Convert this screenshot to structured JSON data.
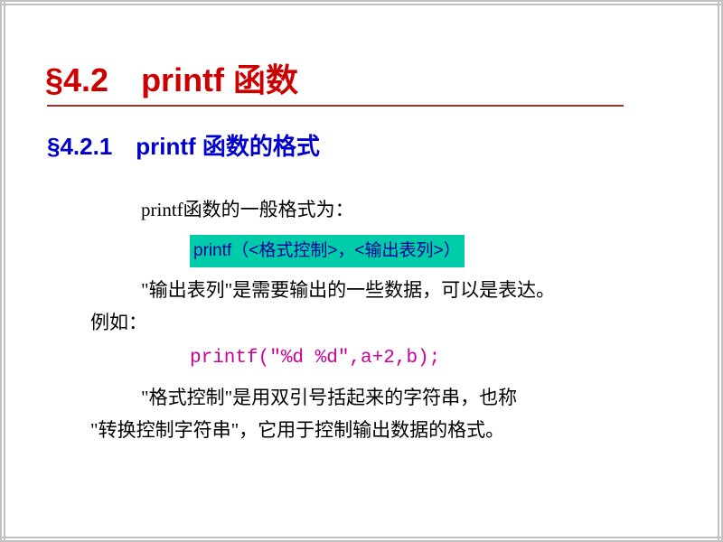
{
  "colors": {
    "border": "#c0c0c0",
    "title": "#cc0000",
    "underline": "#993333",
    "subtitle": "#0000cc",
    "body_text": "#000000",
    "syntax_bg": "#00ccaa",
    "syntax_text": "#000099",
    "code_text": "#cc0099"
  },
  "fonts": {
    "title_size": 36,
    "subtitle_size": 26,
    "body_size": 21,
    "syntax_size": 19,
    "code_size": 21
  },
  "title": "§4.2 printf 函数",
  "subtitle": "§4.2.1 printf 函数的格式",
  "intro": "printf函数的一般格式为：",
  "syntax": "printf（<格式控制>，<输出表列>）",
  "desc1_line1": "\"输出表列\"是需要输出的一些数据，可以是表达。",
  "desc1_line2": "例如：",
  "code": "printf(\"%d %d\",a+2,b);",
  "desc2_line1": "\"格式控制\"是用双引号括起来的字符串，也称",
  "desc2_line2": "\"转换控制字符串\"，它用于控制输出数据的格式。"
}
